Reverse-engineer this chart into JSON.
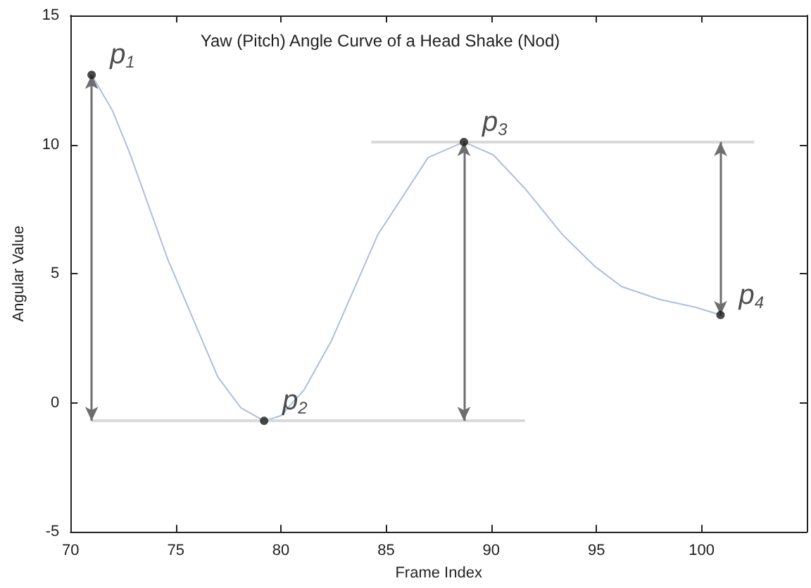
{
  "chart_data": {
    "type": "line",
    "title": "Yaw (Pitch) Angle Curve of a Head Shake (Nod)",
    "xlabel": "Frame Index",
    "ylabel": "Angular Value",
    "xlim": [
      70,
      105
    ],
    "xticks": [
      70,
      75,
      80,
      85,
      90,
      95,
      100,
      {
        "value": 105,
        "label": null
      }
    ],
    "ylim": [
      -5,
      15
    ],
    "yticks": [
      -5,
      0,
      5,
      10,
      15
    ],
    "grid": false,
    "series": [
      {
        "color": "#aebde3",
        "marker": "none",
        "x": [
          71,
          72,
          72.8,
          74.6,
          75.9,
          77,
          78.1,
          79.2,
          80,
          81.1,
          82.4,
          84.6,
          86.2,
          87,
          88.7,
          90.1,
          91.6,
          93.4,
          94.9,
          96.2,
          98,
          99.7,
          100.9
        ],
        "values": [
          12.7,
          11.3,
          9.7,
          5.6,
          3.1,
          1.0,
          -0.2,
          -0.7,
          -0.5,
          0.5,
          2.4,
          6.5,
          8.5,
          9.5,
          10.1,
          9.6,
          8.3,
          6.5,
          5.3,
          4.5,
          4.0,
          3.7,
          3.4
        ]
      },
      {
        "color": "#d9d9d9",
        "marker": "none",
        "x": [
          71,
          91.6
        ],
        "values": [
          -0.7,
          -0.7
        ]
      },
      {
        "color": "#d9d9d9",
        "marker": "none",
        "x": [
          84.3,
          102.5
        ],
        "values": [
          10.1,
          10.1
        ]
      },
      {
        "type": "scatter",
        "color": "#1a1a1a",
        "marker": "circle",
        "x": [
          71,
          79.2,
          88.7,
          100.9
        ],
        "values": [
          12.7,
          -0.7,
          10.1,
          3.4
        ]
      }
    ],
    "annotations": [
      {
        "text": "p$_{1}$",
        "x": 71,
        "y": 12.7
      },
      {
        "text": "p$_{2}$",
        "x": 79.2,
        "y": -0.7
      },
      {
        "text": "p$_{3}$",
        "x": 88.7,
        "y": 10.1
      },
      {
        "text": "p$_{4}$",
        "x": 100.9,
        "y": 3.4
      }
    ]
  }
}
